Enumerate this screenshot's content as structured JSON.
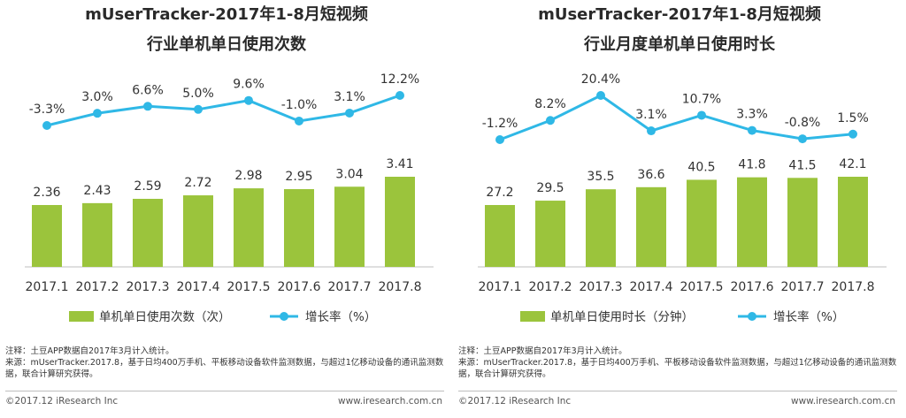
{
  "panels": [
    {
      "title_line1": "mUserTracker-2017年1-8月短视频",
      "title_line2": "行业单机单日使用次数",
      "note_label": "注释：土豆APP数据自2017年3月计入统计。",
      "source_label": "来源：mUserTracker.2017.8，基于日均400万手机、平板移动设备软件监测数据，与超过1亿移动设备的通讯监测数据，联合计算研究获得。",
      "copyright": "©2017.12 iResearch Inc",
      "website": "www.iresearch.com.cn"
    },
    {
      "title_line1": "mUserTracker-2017年1-8月短视频",
      "title_line2": "行业月度单机单日使用时长",
      "note_label": "注释：土豆APP数据自2017年3月计入统计。",
      "source_label": "来源：mUserTracker.2017.8，基于日均400万手机、平板移动设备软件监测数据，与超过1亿移动设备的通讯监测数据，联合计算研究获得。",
      "copyright": "©2017.12 iResearch Inc",
      "website": "www.iresearch.com.cn"
    }
  ],
  "chart_data": [
    {
      "type": "bar",
      "categories": [
        "2017.1",
        "2017.2",
        "2017.3",
        "2017.4",
        "2017.5",
        "2017.6",
        "2017.7",
        "2017.8"
      ],
      "series": [
        {
          "name": "单机单日使用次数（次）",
          "type": "bar",
          "color": "#9bc43c",
          "values": [
            2.36,
            2.43,
            2.59,
            2.72,
            2.98,
            2.95,
            3.04,
            3.41
          ],
          "labels": [
            "2.36",
            "2.43",
            "2.59",
            "2.72",
            "2.98",
            "2.95",
            "3.04",
            "3.41"
          ]
        },
        {
          "name": "增长率（%）",
          "type": "line",
          "color": "#2fb8e6",
          "values": [
            -3.3,
            3.0,
            6.6,
            5.0,
            9.6,
            -1.0,
            3.1,
            12.2
          ],
          "labels": [
            "-3.3%",
            "3.0%",
            "6.6%",
            "5.0%",
            "9.6%",
            "-1.0%",
            "3.1%",
            "12.2%"
          ]
        }
      ],
      "legend": "bottom",
      "grid": false
    },
    {
      "type": "bar",
      "categories": [
        "2017.1",
        "2017.2",
        "2017.3",
        "2017.4",
        "2017.5",
        "2017.6",
        "2017.7",
        "2017.8"
      ],
      "series": [
        {
          "name": "单机单日使用时长（分钟）",
          "type": "bar",
          "color": "#9bc43c",
          "values": [
            27.2,
            29.5,
            35.5,
            36.6,
            40.5,
            41.8,
            41.5,
            42.1
          ],
          "labels": [
            "27.2",
            "29.5",
            "35.5",
            "36.6",
            "40.5",
            "41.8",
            "41.5",
            "42.1"
          ]
        },
        {
          "name": "增长率（%）",
          "type": "line",
          "color": "#2fb8e6",
          "values": [
            -1.2,
            8.2,
            20.4,
            3.1,
            10.7,
            3.3,
            -0.8,
            1.5
          ],
          "labels": [
            "-1.2%",
            "8.2%",
            "20.4%",
            "3.1%",
            "10.7%",
            "3.3%",
            "-0.8%",
            "1.5%"
          ]
        }
      ],
      "legend": "bottom",
      "grid": false
    }
  ]
}
